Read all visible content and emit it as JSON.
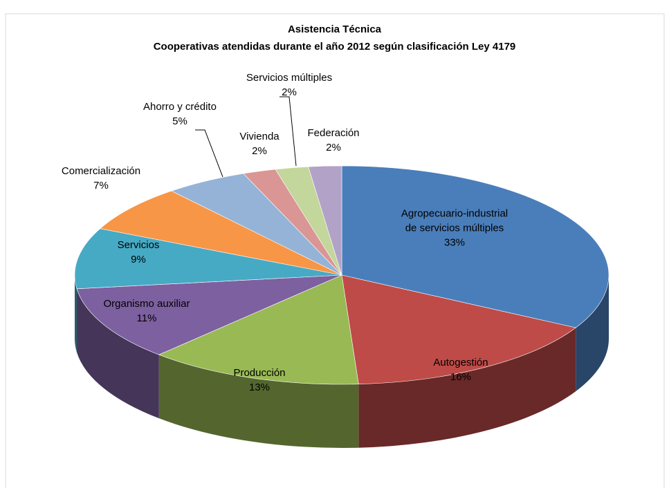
{
  "chart_data": {
    "type": "pie3d",
    "title": "Asistencia Técnica",
    "subtitle": "Cooperativas atendidas durante el año 2012 según clasificación  Ley 4179",
    "categories": [
      "Agropecuario-industrial de servicios múltiples",
      "Autogestión",
      "Producción",
      "Organismo auxiliar",
      "Servicios",
      "Comercialización",
      "Ahorro y crédito",
      "Vivienda",
      "Servicios múltiples",
      "Federación"
    ],
    "values": [
      33,
      16,
      13,
      11,
      9,
      7,
      5,
      2,
      2,
      2
    ],
    "value_labels": [
      "33%",
      "16%",
      "13%",
      "11%",
      "9%",
      "7%",
      "5%",
      "2%",
      "2%",
      "2%"
    ],
    "colors": [
      "#4a7ebb",
      "#be4b48",
      "#98b954",
      "#7d60a0",
      "#46aac5",
      "#f79646",
      "#95b3d7",
      "#d99694",
      "#c3d69b",
      "#b3a2c7"
    ]
  }
}
